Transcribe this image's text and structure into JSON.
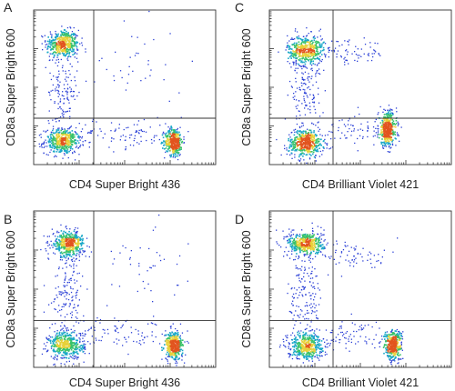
{
  "chart_data": [
    {
      "panel": "A",
      "type": "scatter",
      "xlabel": "CD4 Super Bright 436",
      "ylabel": "CD8a Super Bright 600",
      "xscale": "log",
      "yscale": "log",
      "xlim": [
        0,
        1
      ],
      "ylim": [
        0,
        1
      ],
      "gate": {
        "x": 0.33,
        "y": 0.3
      },
      "populations": [
        {
          "name": "",
          "x": 0.16,
          "y": 0.78,
          "spread": [
            0.045,
            0.045
          ],
          "n": 420
        },
        {
          "name": "",
          "x": 0.16,
          "y": 0.15,
          "spread": [
            0.05,
            0.04
          ],
          "n": 420
        },
        {
          "name": "",
          "x": 0.77,
          "y": 0.15,
          "spread": [
            0.025,
            0.045
          ],
          "n": 380
        },
        {
          "name": "",
          "x": 0.16,
          "y": 0.47,
          "spread": [
            0.04,
            0.16
          ],
          "n": 160
        },
        {
          "name": "",
          "x": 0.5,
          "y": 0.2,
          "spread": [
            0.14,
            0.05
          ],
          "n": 90
        },
        {
          "name": "",
          "x": 0.55,
          "y": 0.62,
          "spread": [
            0.14,
            0.14
          ],
          "n": 40
        }
      ]
    },
    {
      "panel": "B",
      "type": "scatter",
      "xlabel": "CD4 Super Bright 436",
      "ylabel": "CD8a Super Bright 600",
      "xscale": "log",
      "yscale": "log",
      "xlim": [
        0,
        1
      ],
      "ylim": [
        0,
        1
      ],
      "gate": {
        "x": 0.33,
        "y": 0.3
      },
      "populations": [
        {
          "name": "",
          "x": 0.19,
          "y": 0.79,
          "spread": [
            0.045,
            0.04
          ],
          "n": 420
        },
        {
          "name": "",
          "x": 0.18,
          "y": 0.14,
          "spread": [
            0.05,
            0.045
          ],
          "n": 420
        },
        {
          "name": "",
          "x": 0.77,
          "y": 0.14,
          "spread": [
            0.025,
            0.045
          ],
          "n": 380
        },
        {
          "name": "",
          "x": 0.19,
          "y": 0.47,
          "spread": [
            0.045,
            0.16
          ],
          "n": 170
        },
        {
          "name": "",
          "x": 0.5,
          "y": 0.22,
          "spread": [
            0.14,
            0.05
          ],
          "n": 90
        },
        {
          "name": "",
          "x": 0.55,
          "y": 0.65,
          "spread": [
            0.14,
            0.14
          ],
          "n": 45
        }
      ]
    },
    {
      "panel": "C",
      "type": "scatter",
      "xlabel": "CD4 Brilliant Violet 421",
      "ylabel": "CD8a Super Bright 600",
      "xscale": "log",
      "yscale": "log",
      "xlim": [
        0,
        1
      ],
      "ylim": [
        0,
        1
      ],
      "gate": {
        "x": 0.35,
        "y": 0.3
      },
      "populations": [
        {
          "name": "",
          "x": 0.2,
          "y": 0.74,
          "spread": [
            0.05,
            0.05
          ],
          "n": 430
        },
        {
          "name": "",
          "x": 0.2,
          "y": 0.14,
          "spread": [
            0.05,
            0.045
          ],
          "n": 430
        },
        {
          "name": "",
          "x": 0.65,
          "y": 0.23,
          "spread": [
            0.025,
            0.06
          ],
          "n": 380
        },
        {
          "name": "",
          "x": 0.2,
          "y": 0.45,
          "spread": [
            0.045,
            0.15
          ],
          "n": 160
        },
        {
          "name": "",
          "x": 0.45,
          "y": 0.72,
          "spread": [
            0.1,
            0.04
          ],
          "n": 70
        },
        {
          "name": "",
          "x": 0.45,
          "y": 0.22,
          "spread": [
            0.1,
            0.05
          ],
          "n": 70
        }
      ]
    },
    {
      "panel": "D",
      "type": "scatter",
      "xlabel": "CD4 Brilliant Violet 421",
      "ylabel": "CD8a Super Bright 600",
      "xscale": "log",
      "yscale": "log",
      "xlim": [
        0,
        1
      ],
      "ylim": [
        0,
        1
      ],
      "gate": {
        "x": 0.35,
        "y": 0.3
      },
      "populations": [
        {
          "name": "",
          "x": 0.2,
          "y": 0.79,
          "spread": [
            0.05,
            0.04
          ],
          "n": 430
        },
        {
          "name": "",
          "x": 0.2,
          "y": 0.14,
          "spread": [
            0.05,
            0.045
          ],
          "n": 430
        },
        {
          "name": "",
          "x": 0.68,
          "y": 0.14,
          "spread": [
            0.025,
            0.05
          ],
          "n": 380
        },
        {
          "name": "",
          "x": 0.2,
          "y": 0.47,
          "spread": [
            0.045,
            0.16
          ],
          "n": 160
        },
        {
          "name": "",
          "x": 0.47,
          "y": 0.72,
          "spread": [
            0.1,
            0.05
          ],
          "n": 70
        },
        {
          "name": "",
          "x": 0.45,
          "y": 0.2,
          "spread": [
            0.1,
            0.05
          ],
          "n": 70
        }
      ]
    }
  ],
  "colors": {
    "density_low": "#2a3fd6",
    "density_mid": "#1aa8c8",
    "density_midhigh": "#38c26a",
    "density_high": "#e8d13a",
    "density_peak": "#e2541e",
    "frame": "#333333"
  }
}
